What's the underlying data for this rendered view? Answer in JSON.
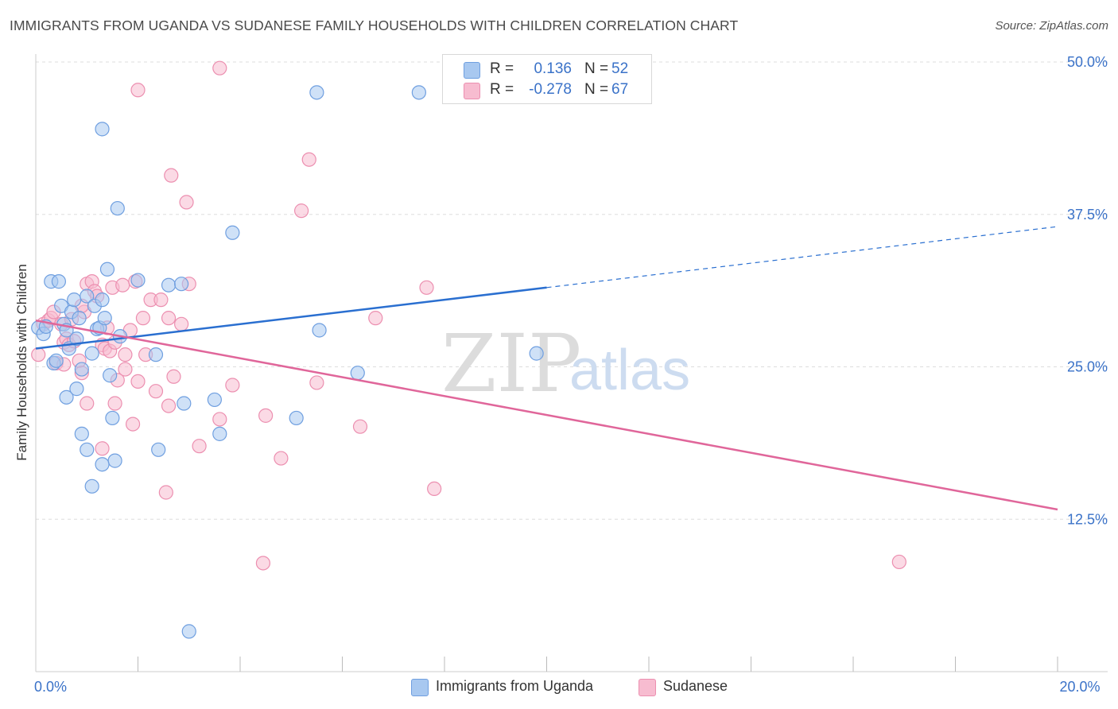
{
  "title": "IMMIGRANTS FROM UGANDA VS SUDANESE FAMILY HOUSEHOLDS WITH CHILDREN CORRELATION CHART",
  "source": "Source: ZipAtlas.com",
  "watermark": {
    "zip": "ZIP",
    "atlas": "atlas"
  },
  "legend": {
    "series1": {
      "r_label": "R =",
      "r_value": "0.136",
      "n_label": "N =",
      "n_value": "52"
    },
    "series2": {
      "r_label": "R =",
      "r_value": "-0.278",
      "n_label": "N =",
      "n_value": "67"
    }
  },
  "bottom_legend": {
    "series1": "Immigrants from Uganda",
    "series2": "Sudanese"
  },
  "colors": {
    "blue_fill": "#a8c8f0",
    "blue_stroke": "#6f9fe0",
    "blue_line": "#2a6fd0",
    "pink_fill": "#f7bcd0",
    "pink_stroke": "#ec8fb0",
    "pink_line": "#e0669a",
    "accent_text": "#3a72c8",
    "grid": "#dddddd"
  },
  "chart_data": {
    "type": "scatter",
    "title": "IMMIGRANTS FROM UGANDA VS SUDANESE FAMILY HOUSEHOLDS WITH CHILDREN CORRELATION CHART",
    "xlabel": "",
    "ylabel": "Family Households with Children",
    "xlim": [
      0,
      20
    ],
    "ylim": [
      0,
      50
    ],
    "x_ticks_labeled": [
      {
        "value": 0,
        "label": "0.0%"
      },
      {
        "value": 20,
        "label": "20.0%"
      }
    ],
    "x_minor_ticks": [
      2,
      4,
      6,
      8,
      10,
      12,
      14,
      16,
      18
    ],
    "y_ticks": [
      {
        "value": 12.5,
        "label": "12.5%"
      },
      {
        "value": 25.0,
        "label": "25.0%"
      },
      {
        "value": 37.5,
        "label": "37.5%"
      },
      {
        "value": 50.0,
        "label": "50.0%"
      }
    ],
    "series": [
      {
        "name": "Immigrants from Uganda",
        "color": "#a8c8f0",
        "r": 0.136,
        "n": 52,
        "trend": {
          "x_start": 0,
          "y_start": 26.5,
          "x_solid_end": 10,
          "y_solid_end": 31.5,
          "x_end": 20,
          "y_end": 36.5
        },
        "points": [
          [
            0.05,
            28.2
          ],
          [
            0.15,
            27.7
          ],
          [
            0.2,
            28.3
          ],
          [
            0.3,
            32.0
          ],
          [
            0.35,
            25.3
          ],
          [
            0.45,
            32.0
          ],
          [
            0.5,
            30.0
          ],
          [
            0.55,
            28.5
          ],
          [
            0.6,
            28.0
          ],
          [
            0.65,
            26.5
          ],
          [
            0.7,
            29.5
          ],
          [
            0.75,
            30.5
          ],
          [
            0.8,
            27.3
          ],
          [
            0.85,
            29.0
          ],
          [
            0.9,
            24.8
          ],
          [
            1.0,
            30.8
          ],
          [
            1.1,
            26.1
          ],
          [
            1.15,
            30.0
          ],
          [
            1.2,
            28.1
          ],
          [
            1.25,
            28.2
          ],
          [
            1.3,
            30.5
          ],
          [
            1.35,
            29.0
          ],
          [
            1.4,
            33.0
          ],
          [
            1.45,
            24.3
          ],
          [
            1.5,
            20.8
          ],
          [
            1.55,
            17.3
          ],
          [
            1.65,
            27.5
          ],
          [
            2.0,
            32.1
          ],
          [
            2.35,
            26.0
          ],
          [
            2.6,
            31.7
          ],
          [
            2.85,
            31.8
          ],
          [
            0.6,
            22.5
          ],
          [
            0.9,
            19.5
          ],
          [
            1.0,
            18.2
          ],
          [
            1.1,
            15.2
          ],
          [
            1.3,
            17.0
          ],
          [
            2.4,
            18.2
          ],
          [
            2.9,
            22.0
          ],
          [
            3.5,
            22.3
          ],
          [
            3.6,
            19.5
          ],
          [
            3.85,
            36.0
          ],
          [
            5.1,
            20.8
          ],
          [
            5.5,
            47.5
          ],
          [
            5.55,
            28.0
          ],
          [
            6.3,
            24.5
          ],
          [
            7.5,
            47.5
          ],
          [
            9.8,
            26.1
          ],
          [
            1.3,
            44.5
          ],
          [
            1.6,
            38.0
          ],
          [
            3.0,
            3.3
          ],
          [
            0.4,
            25.5
          ],
          [
            0.8,
            23.2
          ]
        ]
      },
      {
        "name": "Sudanese",
        "color": "#f7bcd0",
        "r": -0.278,
        "n": 67,
        "trend": {
          "x_start": 0,
          "y_start": 28.8,
          "x_end": 20,
          "y_end": 13.3
        },
        "points": [
          [
            0.05,
            26.0
          ],
          [
            0.15,
            28.5
          ],
          [
            0.25,
            28.8
          ],
          [
            0.3,
            29.0
          ],
          [
            0.4,
            25.3
          ],
          [
            0.5,
            28.5
          ],
          [
            0.55,
            27.0
          ],
          [
            0.6,
            27.3
          ],
          [
            0.65,
            26.8
          ],
          [
            0.7,
            28.9
          ],
          [
            0.75,
            27.1
          ],
          [
            0.85,
            25.5
          ],
          [
            0.9,
            24.5
          ],
          [
            0.95,
            29.5
          ],
          [
            1.0,
            31.8
          ],
          [
            1.1,
            32.0
          ],
          [
            1.15,
            31.2
          ],
          [
            1.2,
            30.8
          ],
          [
            1.3,
            26.8
          ],
          [
            1.35,
            26.5
          ],
          [
            1.4,
            28.2
          ],
          [
            1.45,
            26.3
          ],
          [
            1.5,
            31.5
          ],
          [
            1.55,
            27.0
          ],
          [
            1.6,
            23.9
          ],
          [
            1.7,
            31.7
          ],
          [
            1.75,
            24.8
          ],
          [
            1.85,
            28.0
          ],
          [
            1.95,
            32.0
          ],
          [
            2.0,
            23.8
          ],
          [
            2.1,
            29.0
          ],
          [
            2.15,
            26.0
          ],
          [
            2.25,
            30.5
          ],
          [
            2.35,
            23.0
          ],
          [
            2.45,
            30.5
          ],
          [
            2.6,
            29.0
          ],
          [
            2.7,
            24.2
          ],
          [
            2.85,
            28.5
          ],
          [
            3.0,
            31.8
          ],
          [
            3.2,
            18.5
          ],
          [
            3.6,
            20.7
          ],
          [
            3.85,
            23.5
          ],
          [
            4.5,
            21.0
          ],
          [
            4.8,
            17.5
          ],
          [
            5.35,
            42.0
          ],
          [
            5.2,
            37.8
          ],
          [
            5.5,
            23.7
          ],
          [
            6.35,
            20.1
          ],
          [
            6.65,
            29.0
          ],
          [
            7.65,
            31.5
          ],
          [
            7.8,
            15.0
          ],
          [
            3.6,
            49.5
          ],
          [
            2.0,
            47.7
          ],
          [
            2.65,
            40.7
          ],
          [
            2.95,
            38.5
          ],
          [
            4.45,
            8.9
          ],
          [
            16.9,
            9.0
          ],
          [
            2.55,
            14.7
          ],
          [
            1.3,
            18.3
          ],
          [
            1.9,
            20.3
          ],
          [
            1.0,
            22.0
          ],
          [
            2.6,
            21.8
          ],
          [
            1.55,
            22.0
          ],
          [
            0.55,
            25.2
          ],
          [
            1.75,
            26.0
          ],
          [
            0.35,
            29.5
          ],
          [
            0.9,
            30.0
          ]
        ]
      }
    ]
  }
}
